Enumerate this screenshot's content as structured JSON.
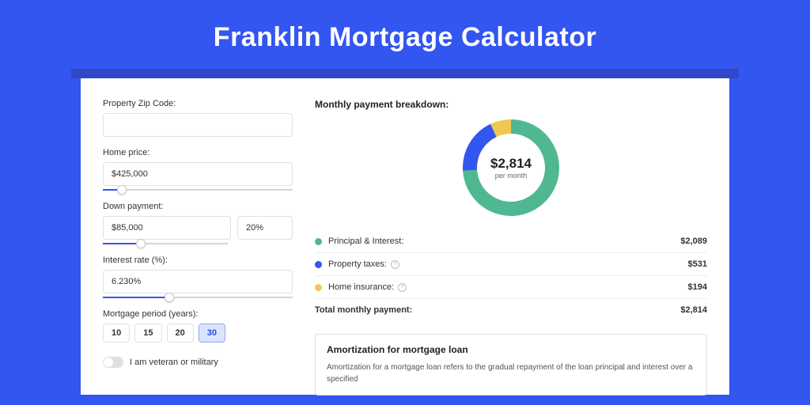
{
  "page": {
    "title": "Franklin Mortgage Calculator",
    "bg_color": "#3355f0",
    "card_bg": "#ffffff",
    "shadow_color": "#3048c8"
  },
  "form": {
    "zip": {
      "label": "Property Zip Code:",
      "value": ""
    },
    "home_price": {
      "label": "Home price:",
      "value": "$425,000",
      "slider_pct": 10
    },
    "down_payment": {
      "label": "Down payment:",
      "amount": "$85,000",
      "pct": "20%",
      "slider_pct": 30
    },
    "interest": {
      "label": "Interest rate (%):",
      "value": "6.230%",
      "slider_pct": 35
    },
    "period": {
      "label": "Mortgage period (years):",
      "options": [
        "10",
        "15",
        "20",
        "30"
      ],
      "active": 3
    },
    "veteran": {
      "label": "I am veteran or military",
      "checked": false
    }
  },
  "breakdown": {
    "heading": "Monthly payment breakdown:",
    "center_amount": "$2,814",
    "center_sub": "per month",
    "donut": {
      "segments": [
        {
          "color": "#50b890",
          "pct": 74
        },
        {
          "color": "#3355f0",
          "pct": 19
        },
        {
          "color": "#f0c850",
          "pct": 7
        }
      ],
      "thickness": 18
    },
    "rows": [
      {
        "dot": "#50b890",
        "label": "Principal & Interest:",
        "info": false,
        "value": "$2,089"
      },
      {
        "dot": "#3355f0",
        "label": "Property taxes:",
        "info": true,
        "value": "$531"
      },
      {
        "dot": "#f0c850",
        "label": "Home insurance:",
        "info": true,
        "value": "$194"
      }
    ],
    "total": {
      "label": "Total monthly payment:",
      "value": "$2,814"
    }
  },
  "amortization": {
    "title": "Amortization for mortgage loan",
    "text": "Amortization for a mortgage loan refers to the gradual repayment of the loan principal and interest over a specified"
  }
}
